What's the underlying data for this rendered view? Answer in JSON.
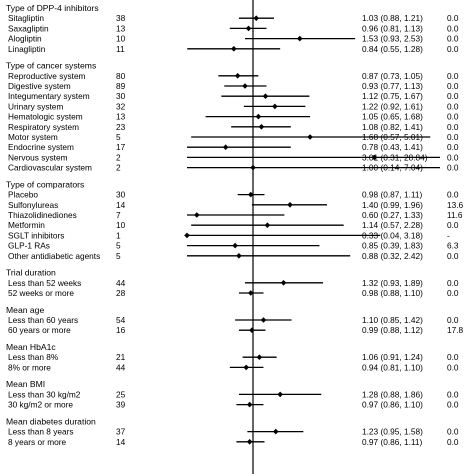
{
  "chart_data": {
    "type": "forest",
    "reference_value": 1,
    "groups": [
      {
        "title": "Type of DPP-4 inhibitors",
        "rows": [
          {
            "label": "Sitagliptin",
            "n": "38",
            "est": 1.03,
            "lo": 0.88,
            "hi": 1.21,
            "ci_text": "1.03 (0.88, 1.21)",
            "het": "0.0"
          },
          {
            "label": "Saxagliptin",
            "n": "13",
            "est": 0.96,
            "lo": 0.81,
            "hi": 1.13,
            "ci_text": "0.96 (0.81, 1.13)",
            "het": "0.0"
          },
          {
            "label": "Alogliptin",
            "n": "10",
            "est": 1.53,
            "lo": 0.93,
            "hi": 2.53,
            "ci_text": "1.53 (0.93, 2.53)",
            "het": "0.0"
          },
          {
            "label": "Linagliptin",
            "n": "11",
            "est": 0.84,
            "lo": 0.55,
            "hi": 1.28,
            "ci_text": "0.84 (0.55, 1.28)",
            "het": "0.0"
          }
        ]
      },
      {
        "title": "Type of cancer systems",
        "rows": [
          {
            "label": "Reproductive system",
            "n": "80",
            "est": 0.87,
            "lo": 0.73,
            "hi": 1.05,
            "ci_text": "0.87 (0.73, 1.05)",
            "het": "0.0"
          },
          {
            "label": "Digestive system",
            "n": "89",
            "est": 0.93,
            "lo": 0.77,
            "hi": 1.13,
            "ci_text": "0.93 (0.77, 1.13)",
            "het": "0.0"
          },
          {
            "label": "Integumentary system",
            "n": "30",
            "est": 1.12,
            "lo": 0.75,
            "hi": 1.67,
            "ci_text": "1.12 (0.75, 1.67)",
            "het": "0.0"
          },
          {
            "label": "Urinary system",
            "n": "32",
            "est": 1.22,
            "lo": 0.92,
            "hi": 1.61,
            "ci_text": "1.22 (0.92, 1.61)",
            "het": "0.0"
          },
          {
            "label": "Hematologic system",
            "n": "13",
            "est": 1.05,
            "lo": 0.65,
            "hi": 1.68,
            "ci_text": "1.05 (0.65, 1.68)",
            "het": "0.0"
          },
          {
            "label": "Respiratory system",
            "n": "23",
            "est": 1.08,
            "lo": 0.82,
            "hi": 1.41,
            "ci_text": "1.08 (0.82, 1.41)",
            "het": "0.0"
          },
          {
            "label": "Motor system",
            "n": "5",
            "est": 1.68,
            "lo": 0.57,
            "hi": 5.01,
            "ci_text": "1.68 (0.57, 5.01)",
            "het": "0.0"
          },
          {
            "label": "Endocrine system",
            "n": "17",
            "est": 0.78,
            "lo": 0.43,
            "hi": 1.41,
            "ci_text": "0.78 (0.43, 1.41)",
            "het": "0.0"
          },
          {
            "label": "Nervous system",
            "n": "2",
            "est": 3.01,
            "lo": 0.31,
            "hi": 28.84,
            "ci_text": "3.01 (0.31, 28.84)",
            "het": "0.0"
          },
          {
            "label": "Cardiovascular system",
            "n": "2",
            "est": 1.0,
            "lo": 0.14,
            "hi": 7.04,
            "ci_text": "1.00 (0.14, 7.04)",
            "het": "0.0"
          }
        ]
      },
      {
        "title": "Type of comparators",
        "rows": [
          {
            "label": "Placebo",
            "n": "30",
            "est": 0.98,
            "lo": 0.87,
            "hi": 1.11,
            "ci_text": "0.98 (0.87, 1.11)",
            "het": "0.0"
          },
          {
            "label": "Sulfonylureas",
            "n": "14",
            "est": 1.4,
            "lo": 0.99,
            "hi": 1.96,
            "ci_text": "1.40 (0.99, 1.96)",
            "het": "13.6"
          },
          {
            "label": "Thiazolidinediones",
            "n": "7",
            "est": 0.6,
            "lo": 0.27,
            "hi": 1.33,
            "ci_text": "0.60 (0.27, 1.33)",
            "het": "11.6"
          },
          {
            "label": "Metformin",
            "n": "10",
            "est": 1.14,
            "lo": 0.57,
            "hi": 2.28,
            "ci_text": "1.14 (0.57, 2.28)",
            "het": "0.0"
          },
          {
            "label": "SGLT inhibitors",
            "n": "1",
            "est": 0.33,
            "lo": 0.04,
            "hi": 3.18,
            "ci_text": "0.33 (0.04, 3.18)",
            "het": "-"
          },
          {
            "label": "GLP-1 RAs",
            "n": "5",
            "est": 0.85,
            "lo": 0.39,
            "hi": 1.83,
            "ci_text": "0.85 (0.39, 1.83)",
            "het": "6.3"
          },
          {
            "label": "Other antidiabetic agents",
            "n": "5",
            "est": 0.88,
            "lo": 0.32,
            "hi": 2.42,
            "ci_text": "0.88 (0.32, 2.42)",
            "het": "0.0"
          }
        ]
      },
      {
        "title": "Trial duration",
        "rows": [
          {
            "label": "Less than 52 weeks",
            "n": "44",
            "est": 1.32,
            "lo": 0.93,
            "hi": 1.89,
            "ci_text": "1.32 (0.93, 1.89)",
            "het": "0.0"
          },
          {
            "label": "52 weeks or more",
            "n": "28",
            "est": 0.98,
            "lo": 0.88,
            "hi": 1.1,
            "ci_text": "0.98 (0.88, 1.10)",
            "het": "0.0"
          }
        ]
      },
      {
        "title": "Mean age",
        "rows": [
          {
            "label": "Less than 60 years",
            "n": "54",
            "est": 1.1,
            "lo": 0.85,
            "hi": 1.42,
            "ci_text": "1.10 (0.85, 1.42)",
            "het": "0.0"
          },
          {
            "label": "60 years or more",
            "n": "16",
            "est": 0.99,
            "lo": 0.88,
            "hi": 1.12,
            "ci_text": "0.99 (0.88, 1.12)",
            "het": "17.8"
          }
        ]
      },
      {
        "title": "Mean HbA1c",
        "rows": [
          {
            "label": "Less than 8%",
            "n": "21",
            "est": 1.06,
            "lo": 0.91,
            "hi": 1.24,
            "ci_text": "1.06 (0.91, 1.24)",
            "het": "0.0"
          },
          {
            "label": "8% or more",
            "n": "44",
            "est": 0.94,
            "lo": 0.81,
            "hi": 1.1,
            "ci_text": "0.94 (0.81, 1.10)",
            "het": "0.0"
          }
        ]
      },
      {
        "title": "Mean BMI",
        "rows": [
          {
            "label": "Less than 30 kg/m2",
            "n": "25",
            "est": 1.28,
            "lo": 0.88,
            "hi": 1.86,
            "ci_text": "1.28 (0.88, 1.86)",
            "het": "0.0"
          },
          {
            "label": "30 kg/m2 or more",
            "n": "39",
            "est": 0.97,
            "lo": 0.86,
            "hi": 1.1,
            "ci_text": "0.97 (0.86, 1.10)",
            "het": "0.0"
          }
        ]
      },
      {
        "title": "Mean diabetes duration",
        "rows": [
          {
            "label": "Less than 8 years",
            "n": "37",
            "est": 1.23,
            "lo": 0.95,
            "hi": 1.58,
            "ci_text": "1.23 (0.95, 1.58)",
            "het": "0.0"
          },
          {
            "label": "8 years or more",
            "n": "14",
            "est": 0.97,
            "lo": 0.86,
            "hi": 1.11,
            "ci_text": "0.97 (0.86, 1.11)",
            "het": "0.0"
          }
        ]
      }
    ]
  }
}
